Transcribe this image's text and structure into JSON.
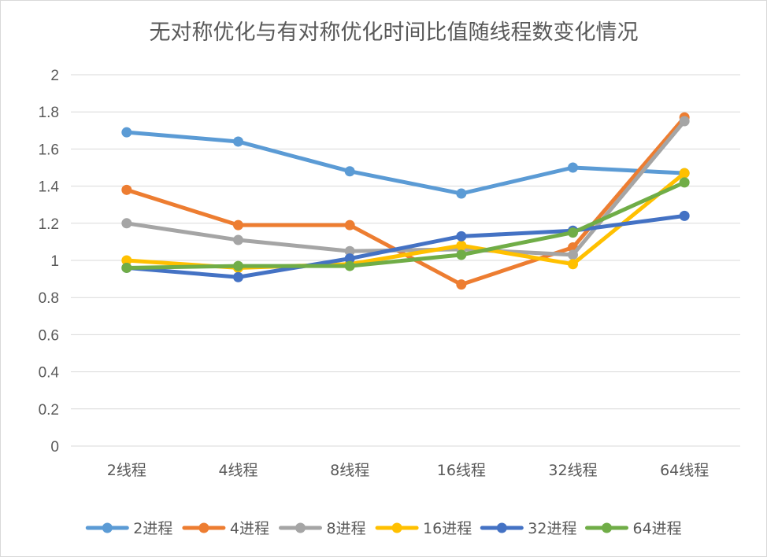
{
  "chart_data": {
    "type": "line",
    "title": "无对称优化与有对称优化时间比值随线程数变化情况",
    "xlabel": "",
    "ylabel": "",
    "categories": [
      "2线程",
      "4线程",
      "8线程",
      "16线程",
      "32线程",
      "64线程"
    ],
    "ylim": [
      0,
      2
    ],
    "yticks": [
      "0",
      "0.2",
      "0.4",
      "0.6",
      "0.8",
      "1",
      "1.2",
      "1.4",
      "1.6",
      "1.8",
      "2"
    ],
    "grid": true,
    "legend_position": "bottom",
    "series": [
      {
        "name": "2进程",
        "color": "#5B9BD5",
        "values": [
          1.69,
          1.64,
          1.48,
          1.36,
          1.5,
          1.47
        ]
      },
      {
        "name": "4进程",
        "color": "#ED7D31",
        "values": [
          1.38,
          1.19,
          1.19,
          0.87,
          1.07,
          1.77
        ]
      },
      {
        "name": "8进程",
        "color": "#A5A5A5",
        "values": [
          1.2,
          1.11,
          1.05,
          1.06,
          1.03,
          1.75
        ]
      },
      {
        "name": "16进程",
        "color": "#FFC000",
        "values": [
          1.0,
          0.96,
          0.98,
          1.08,
          0.98,
          1.47
        ]
      },
      {
        "name": "32进程",
        "color": "#4472C4",
        "values": [
          0.96,
          0.91,
          1.01,
          1.13,
          1.16,
          1.24
        ]
      },
      {
        "name": "64进程",
        "color": "#70AD47",
        "values": [
          0.96,
          0.97,
          0.97,
          1.03,
          1.15,
          1.42
        ]
      }
    ]
  }
}
